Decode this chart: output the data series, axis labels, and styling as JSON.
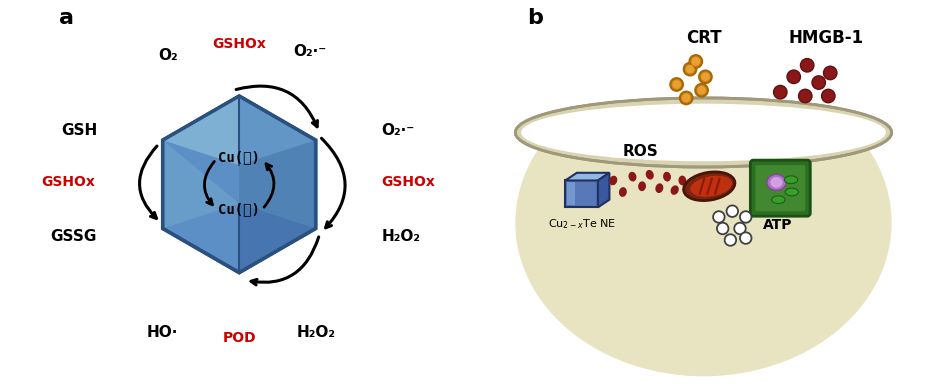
{
  "panel_a": {
    "label": "a",
    "hex_face": "#5b8fc5",
    "hex_edge": "#2a5080",
    "hex_top_highlight": "#8bbcd8",
    "hex_left_highlight": "#7aadd0",
    "hex_right_shade": "#3a6a9a",
    "hex_bottom_shade": "#3060a0",
    "cu1_text": "Cu(Ⅰ)",
    "cu2_text": "Cu(Ⅱ)",
    "top_left_label": "O₂",
    "top_right_label": "O₂·⁻",
    "top_mid_red": "GSHOx",
    "left_top_label": "GSH",
    "left_mid_red": "GSHOx",
    "left_bot_label": "GSSG",
    "right_top_label": "O₂·⁻",
    "right_mid_red": "GSHOx",
    "right_bot_label": "H₂O₂",
    "bot_left_label": "HO·",
    "bot_mid_red": "POD",
    "bot_right_label": "H₂O₂",
    "red_color": "#cc0000",
    "black_color": "#111111"
  },
  "panel_b": {
    "label": "b",
    "bowl_fill": "#e8e3c0",
    "bowl_edge": "#b8b090",
    "rim_fill": "#d8d3b0",
    "rim_edge": "#a0987a",
    "crt_fill": "#cc8820",
    "crt_edge": "#aa6600",
    "hmgb1_fill": "#8b1818",
    "hmgb1_edge": "#601010",
    "ros_fill": "#8b1818",
    "crystal_blue": "#5070b0",
    "crystal_light": "#90b8e0",
    "crystal_dark": "#304878",
    "atp_fill": "#ffffff",
    "atp_edge": "#404040"
  }
}
